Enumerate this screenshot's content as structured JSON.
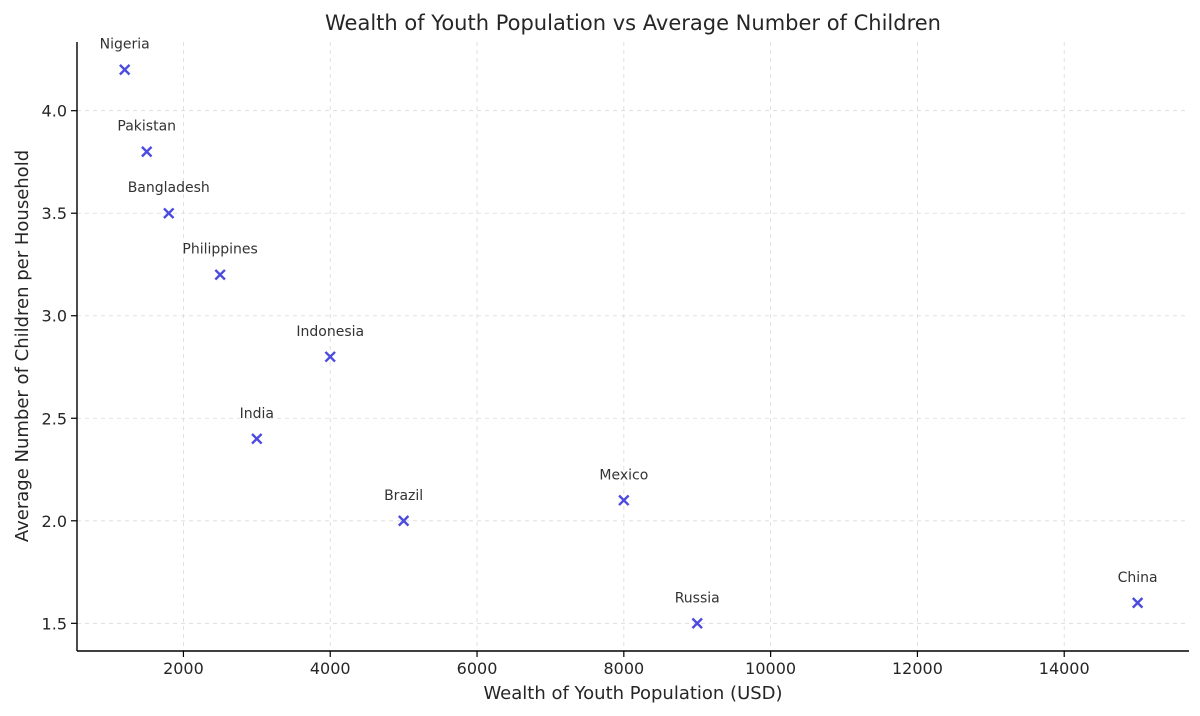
{
  "chart_data": {
    "type": "scatter",
    "title": "Wealth of Youth Population vs Average Number of Children",
    "xlabel": "Wealth of Youth Population (USD)",
    "ylabel": "Average Number of Children per Household",
    "xlim": [
      550,
      15700
    ],
    "ylim": [
      1.365,
      4.335
    ],
    "x_ticks": [
      2000,
      4000,
      6000,
      8000,
      10000,
      12000,
      14000
    ],
    "y_ticks": [
      1.5,
      2.0,
      2.5,
      3.0,
      3.5,
      4.0
    ],
    "x_tick_labels": [
      "2000",
      "4000",
      "6000",
      "8000",
      "10000",
      "12000",
      "14000"
    ],
    "y_tick_labels": [
      "1.5",
      "2.0",
      "2.5",
      "3.0",
      "3.5",
      "4.0"
    ],
    "grid": true,
    "marker": "x",
    "marker_color": "#4b4be0",
    "points": [
      {
        "label": "Nigeria",
        "x": 1200,
        "y": 4.2
      },
      {
        "label": "Pakistan",
        "x": 1500,
        "y": 3.8
      },
      {
        "label": "Bangladesh",
        "x": 1800,
        "y": 3.5
      },
      {
        "label": "Philippines",
        "x": 2500,
        "y": 3.2
      },
      {
        "label": "Indonesia",
        "x": 4000,
        "y": 2.8
      },
      {
        "label": "India",
        "x": 3000,
        "y": 2.4
      },
      {
        "label": "Brazil",
        "x": 5000,
        "y": 2.0
      },
      {
        "label": "Mexico",
        "x": 8000,
        "y": 2.1
      },
      {
        "label": "Russia",
        "x": 9000,
        "y": 1.5
      },
      {
        "label": "China",
        "x": 15000,
        "y": 1.6
      }
    ]
  }
}
